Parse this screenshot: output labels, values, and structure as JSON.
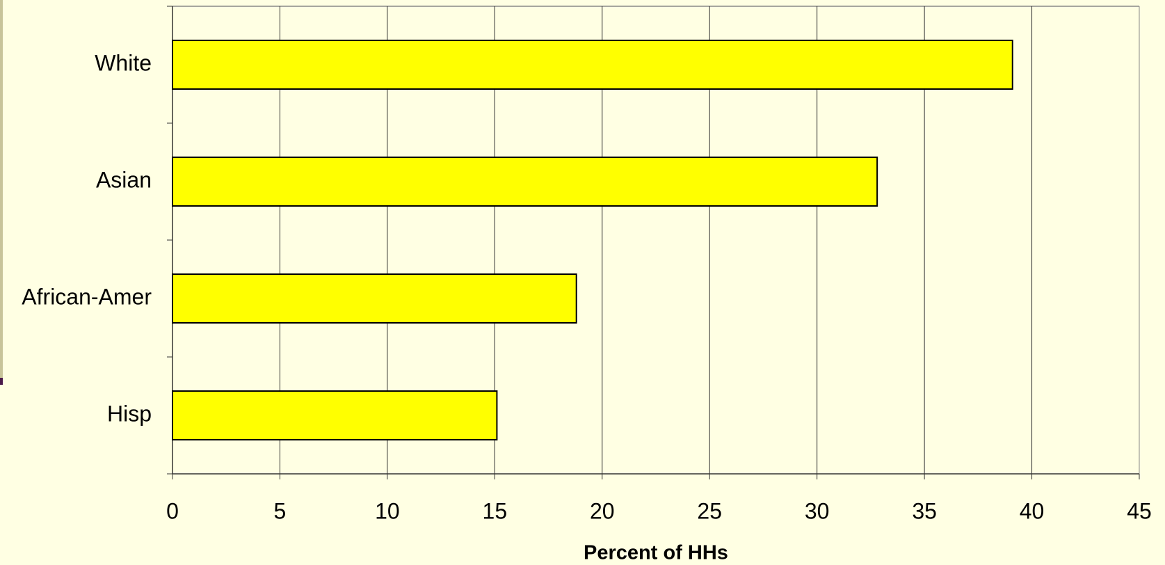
{
  "chart_data": {
    "type": "bar",
    "orientation": "horizontal",
    "categories": [
      "White",
      "Asian",
      "African-Amer",
      "Hisp"
    ],
    "values": [
      39.1,
      32.8,
      18.8,
      15.1
    ],
    "color": "#ffff00",
    "xlabel": "Percent of HHs",
    "xlim": [
      0,
      45
    ],
    "xticks": [
      0,
      5,
      10,
      15,
      20,
      25,
      30,
      35,
      40,
      45
    ],
    "grid": true
  }
}
